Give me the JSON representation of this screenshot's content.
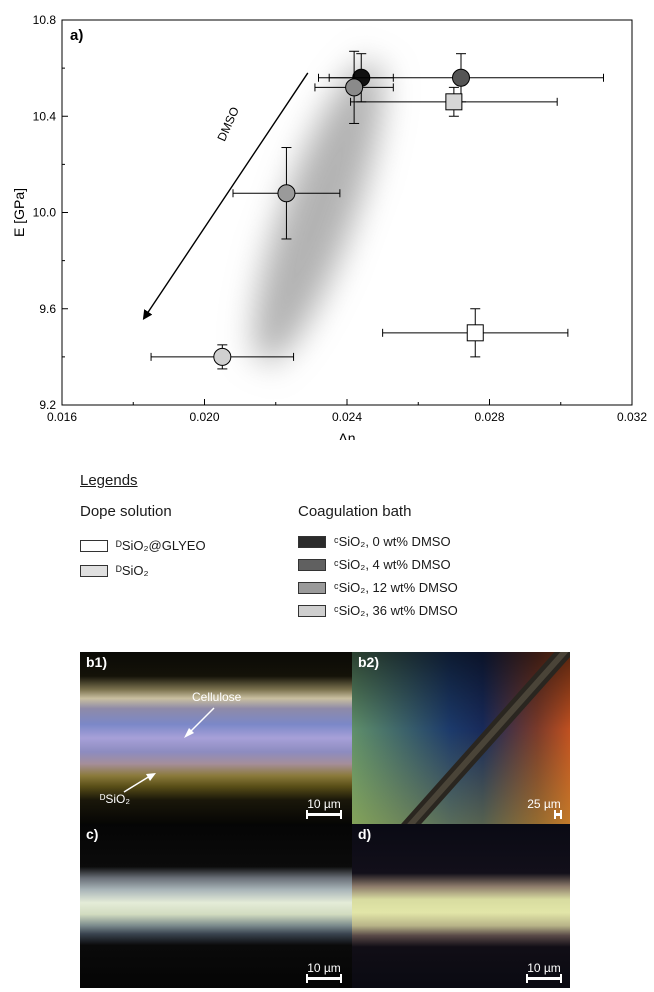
{
  "chart_data": {
    "type": "scatter",
    "panel_label": "a)",
    "xlabel": "Δn",
    "ylabel": "E [GPa]",
    "xlim": [
      0.016,
      0.032
    ],
    "ylim": [
      9.2,
      10.8
    ],
    "x_ticks": [
      "0.016",
      "0.020",
      "0.024",
      "0.028",
      "0.032"
    ],
    "y_ticks": [
      "9.2",
      "9.6",
      "10.0",
      "10.4",
      "10.8"
    ],
    "x_tick_values": [
      0.016,
      0.02,
      0.024,
      0.028,
      0.032
    ],
    "y_tick_values": [
      9.2,
      9.6,
      10.0,
      10.4,
      10.8
    ],
    "arrow_label": "DMSO",
    "points": [
      {
        "x": 0.0244,
        "y": 10.56,
        "xerr": 0.0009,
        "yerr": 0.1,
        "shape": "circle",
        "color": "#111111"
      },
      {
        "x": 0.0272,
        "y": 10.56,
        "xerr": 0.004,
        "yerr": 0.1,
        "shape": "circle",
        "color": "#555555"
      },
      {
        "x": 0.0242,
        "y": 10.52,
        "xerr": 0.0011,
        "yerr": 0.15,
        "shape": "circle",
        "color": "#8a8a8a"
      },
      {
        "x": 0.027,
        "y": 10.46,
        "xerr": 0.0029,
        "yerr": 0.06,
        "shape": "square",
        "color": "#d6d6d6"
      },
      {
        "x": 0.0223,
        "y": 10.08,
        "xerr": 0.0015,
        "yerr": 0.19,
        "shape": "circle",
        "color": "#9a9a9a"
      },
      {
        "x": 0.0205,
        "y": 9.4,
        "xerr": 0.002,
        "yerr": 0.05,
        "shape": "circle",
        "color": "#d0d0d0"
      },
      {
        "x": 0.0276,
        "y": 9.5,
        "xerr": 0.0026,
        "yerr": 0.1,
        "shape": "square",
        "color": "#ffffff"
      }
    ]
  },
  "legend": {
    "title": "Legends",
    "dope_title": "Dope solution",
    "coag_title": "Coagulation bath",
    "dope_items": [
      {
        "label": "ᴰSiO₂@GLYEO",
        "color": "#ffffff"
      },
      {
        "label": "ᴰSiO₂",
        "color": "#e0e0e0"
      }
    ],
    "coag_items": [
      {
        "label": "ᶜSiO₂, 0 wt% DMSO",
        "color": "#2b2b2b"
      },
      {
        "label": "ᶜSiO₂, 4 wt% DMSO",
        "color": "#606060"
      },
      {
        "label": "ᶜSiO₂, 12 wt% DMSO",
        "color": "#9a9a9a"
      },
      {
        "label": "ᶜSiO₂, 36 wt% DMSO",
        "color": "#cfcfcf"
      }
    ]
  },
  "micrographs": {
    "b1": {
      "label": "b1)",
      "scale": "10 µm",
      "annotation_cellulose": "Cellulose",
      "annotation_sio2": "ᴰSiO₂"
    },
    "b2": {
      "label": "b2)",
      "scale": "25 µm"
    },
    "c": {
      "label": "c)",
      "scale": "10 µm"
    },
    "d": {
      "label": "d)",
      "scale": "10 µm"
    }
  }
}
